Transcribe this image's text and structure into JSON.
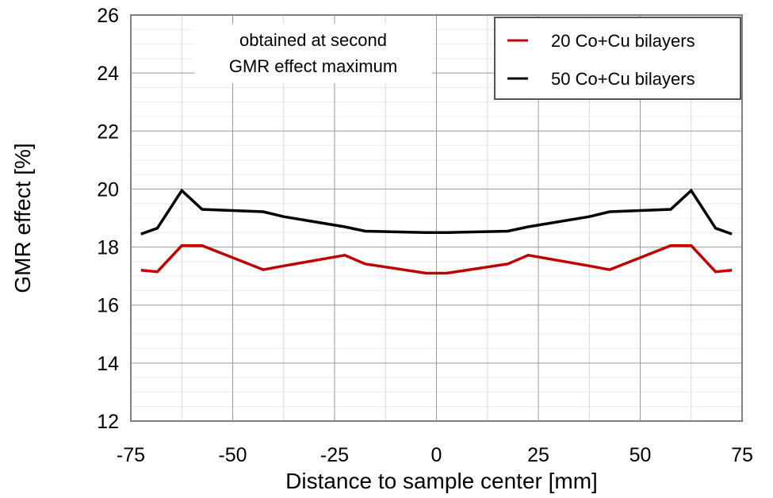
{
  "chart_data": {
    "type": "line",
    "title": "",
    "xlabel": "Distance to sample center [mm]",
    "ylabel": "GMR effect [%]",
    "xlim": [
      -75,
      75
    ],
    "ylim": [
      12,
      26
    ],
    "xticks": [
      -75,
      -50,
      -25,
      0,
      25,
      50,
      75
    ],
    "xtick_labels": [
      "-75",
      "-50",
      "-25",
      "0",
      "25",
      "50",
      "75"
    ],
    "yticks": [
      12,
      14,
      16,
      18,
      20,
      22,
      24,
      26
    ],
    "ytick_labels": [
      "12",
      "14",
      "16",
      "18",
      "20",
      "22",
      "24",
      "26"
    ],
    "grid": true,
    "legend_position": "top-right",
    "annotation": {
      "lines": [
        "obtained at second",
        "GMR effect maximum"
      ],
      "position": "top-left"
    },
    "series": [
      {
        "name": "20 Co+Cu bilayers",
        "color": "#c00000",
        "x": [
          -72.5,
          -68.5,
          -62.5,
          -57.5,
          -42.5,
          -37.5,
          -22.5,
          -17.5,
          -2.5,
          2.5,
          17.5,
          22.5,
          37.5,
          42.5,
          57.5,
          62.5,
          68.5,
          72.5
        ],
        "y": [
          17.2,
          17.15,
          18.05,
          18.05,
          17.22,
          17.35,
          17.72,
          17.42,
          17.1,
          17.1,
          17.42,
          17.72,
          17.35,
          17.22,
          18.05,
          18.05,
          17.15,
          17.2
        ]
      },
      {
        "name": "50 Co+Cu bilayers",
        "color": "#000000",
        "x": [
          -72.5,
          -68.5,
          -62.5,
          -57.5,
          -42.5,
          -37.5,
          -22.5,
          -17.5,
          -2.5,
          2.5,
          17.5,
          22.5,
          37.5,
          42.5,
          57.5,
          62.5,
          68.5,
          72.5
        ],
        "y": [
          18.45,
          18.65,
          19.95,
          19.3,
          19.22,
          19.05,
          18.7,
          18.55,
          18.5,
          18.5,
          18.55,
          18.7,
          19.05,
          19.22,
          19.3,
          19.95,
          18.65,
          18.45
        ]
      }
    ]
  }
}
